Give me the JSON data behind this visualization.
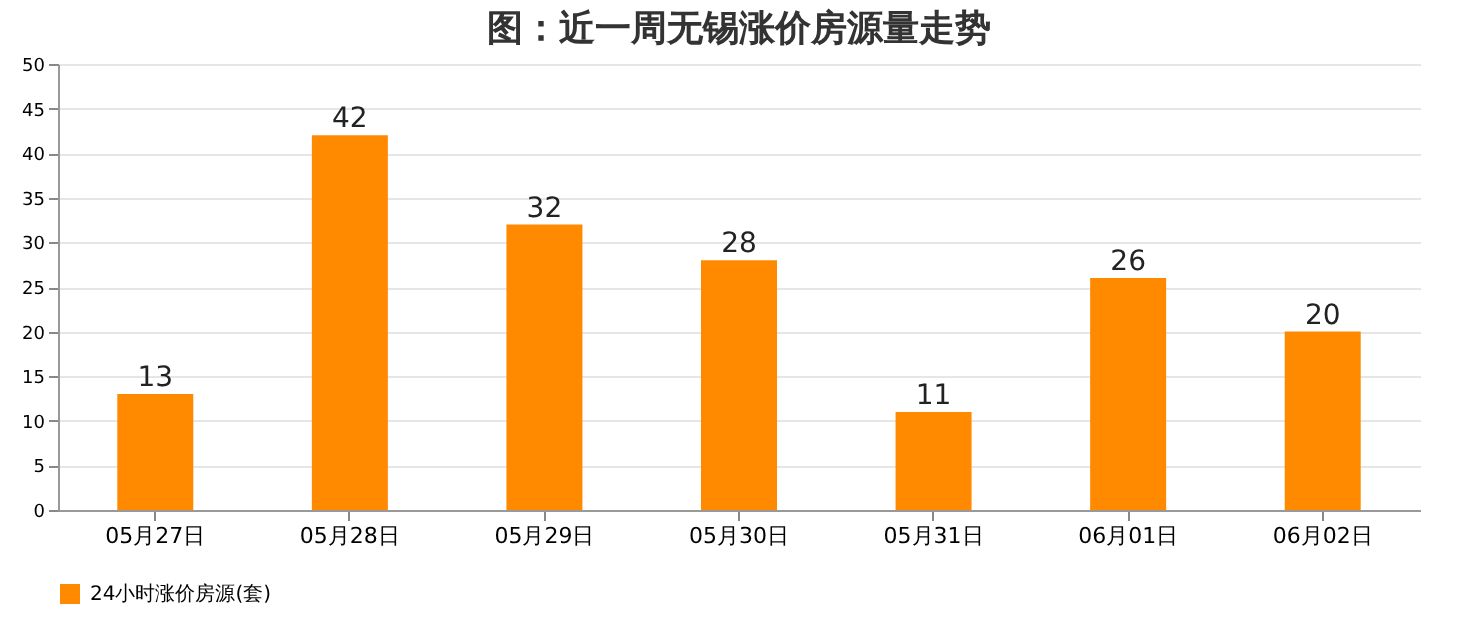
{
  "chart_data": {
    "type": "bar",
    "title": "图：近一周无锡涨价房源量走势",
    "categories": [
      "05月27日",
      "05月28日",
      "05月29日",
      "05月30日",
      "05月31日",
      "06月01日",
      "06月02日"
    ],
    "series": [
      {
        "name": "24小时涨价房源(套)",
        "color": "#ff8a00",
        "values": [
          13,
          42,
          32,
          28,
          11,
          26,
          20
        ]
      }
    ],
    "ylim": [
      0,
      50
    ],
    "yticks": [
      0,
      5,
      10,
      15,
      20,
      25,
      30,
      35,
      40,
      45,
      50
    ],
    "grid": "y",
    "legend": "bottom",
    "data_labels": true
  }
}
